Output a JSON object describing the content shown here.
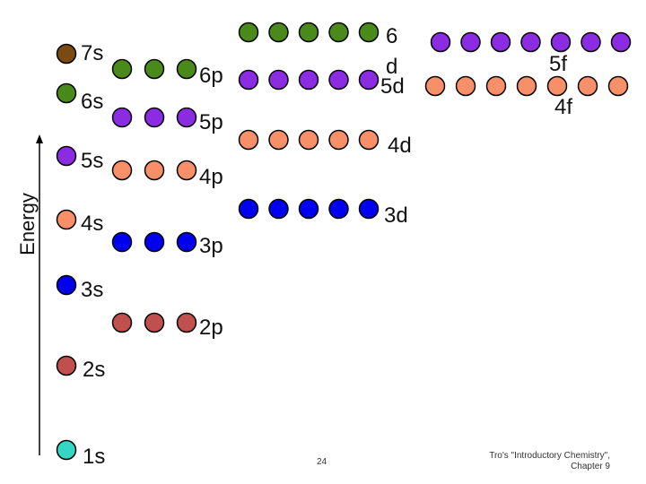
{
  "axis": {
    "label": "Energy"
  },
  "colors": {
    "s1": "#35d6c4",
    "s2": "#c0504d",
    "s3": "#0000ee",
    "s4": "#f79068",
    "s5": "#8b2be2",
    "s6": "#4a8a1a",
    "s7": "#7a4a12",
    "outline": "#000000"
  },
  "sublevels": [
    {
      "name": "1s",
      "label": "1s",
      "orbitals": 1,
      "color": "#35d6c4"
    },
    {
      "name": "2s",
      "label": "2s",
      "orbitals": 1,
      "color": "#c0504d"
    },
    {
      "name": "2p",
      "label": "2p",
      "orbitals": 3,
      "color": "#c0504d"
    },
    {
      "name": "3s",
      "label": "3s",
      "orbitals": 1,
      "color": "#0000ee"
    },
    {
      "name": "3p",
      "label": "3p",
      "orbitals": 3,
      "color": "#0000ee"
    },
    {
      "name": "4s",
      "label": "4s",
      "orbitals": 1,
      "color": "#f79068"
    },
    {
      "name": "3d",
      "label": "3d",
      "orbitals": 5,
      "color": "#0000ee"
    },
    {
      "name": "4p",
      "label": "4p",
      "orbitals": 3,
      "color": "#f79068"
    },
    {
      "name": "5s",
      "label": "5s",
      "orbitals": 1,
      "color": "#8b2be2"
    },
    {
      "name": "4d",
      "label": "4d",
      "orbitals": 5,
      "color": "#f79068"
    },
    {
      "name": "5p",
      "label": "5p",
      "orbitals": 3,
      "color": "#8b2be2"
    },
    {
      "name": "6s",
      "label": "6s",
      "orbitals": 1,
      "color": "#4a8a1a"
    },
    {
      "name": "4f",
      "label": "4f",
      "orbitals": 7,
      "color": "#f79068"
    },
    {
      "name": "5d",
      "label": "5d",
      "orbitals": 5,
      "color": "#8b2be2"
    },
    {
      "name": "6p",
      "label": "6p",
      "orbitals": 3,
      "color": "#4a8a1a"
    },
    {
      "name": "7s",
      "label": "7s",
      "orbitals": 1,
      "color": "#7a4a12"
    },
    {
      "name": "5f",
      "label": "5f",
      "orbitals": 7,
      "color": "#8b2be2"
    },
    {
      "name": "6d",
      "label": "6\nd",
      "orbitals": 5,
      "color": "#4a8a1a"
    }
  ],
  "footer": {
    "page_number": "24",
    "credit_line1": "Tro's \"Introductory Chemistry\",",
    "credit_line2": "Chapter 9"
  }
}
